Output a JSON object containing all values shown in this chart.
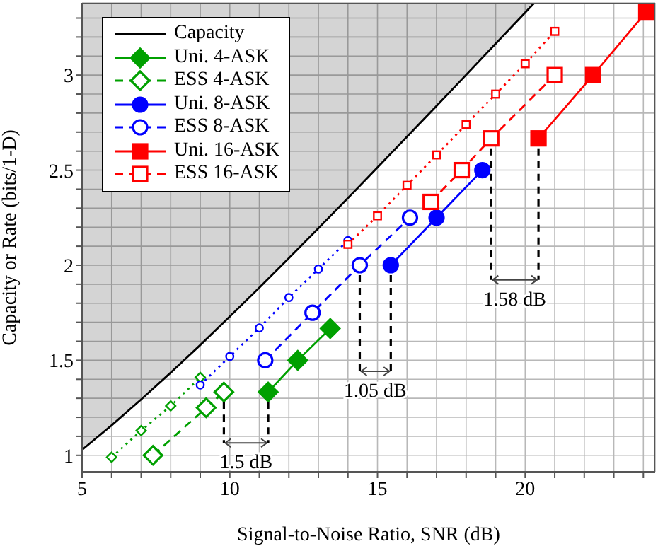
{
  "chart_data": {
    "type": "line",
    "xlabel": "Signal-to-Noise Ratio, SNR (dB)",
    "ylabel": "Capacity or Rate (bits/1-D)",
    "xlim": [
      5,
      24.4
    ],
    "ylim": [
      0.91,
      3.38
    ],
    "xticks": [
      5,
      {
        "value": 6,
        "label": null
      },
      {
        "value": 7,
        "label": null
      },
      {
        "value": 8,
        "label": null
      },
      {
        "value": 9,
        "label": null
      },
      10,
      {
        "value": 11,
        "label": null
      },
      {
        "value": 12,
        "label": null
      },
      {
        "value": 13,
        "label": null
      },
      {
        "value": 14,
        "label": null
      },
      15,
      {
        "value": 16,
        "label": null
      },
      {
        "value": 17,
        "label": null
      },
      {
        "value": 18,
        "label": null
      },
      {
        "value": 19,
        "label": null
      },
      20,
      {
        "value": 21,
        "label": null
      },
      {
        "value": 22,
        "label": null
      },
      {
        "value": 23,
        "label": null
      },
      {
        "value": 24,
        "label": null
      }
    ],
    "yticks": [
      1,
      {
        "value": 1.1,
        "label": null
      },
      {
        "value": 1.2,
        "label": null
      },
      {
        "value": 1.3,
        "label": null
      },
      {
        "value": 1.4,
        "label": null
      },
      1.5,
      {
        "value": 1.6,
        "label": null
      },
      {
        "value": 1.7,
        "label": null
      },
      {
        "value": 1.8,
        "label": null
      },
      {
        "value": 1.9,
        "label": null
      },
      2,
      {
        "value": 2.1,
        "label": null
      },
      {
        "value": 2.2,
        "label": null
      },
      {
        "value": 2.3,
        "label": null
      },
      {
        "value": 2.4,
        "label": null
      },
      2.5,
      {
        "value": 2.6,
        "label": null
      },
      {
        "value": 2.7,
        "label": null
      },
      {
        "value": 2.8,
        "label": null
      },
      {
        "value": 2.9,
        "label": null
      },
      3,
      {
        "value": 3.1,
        "label": null
      },
      {
        "value": 3.2,
        "label": null
      },
      {
        "value": 3.3,
        "label": null
      }
    ],
    "grid": true,
    "legend": "top left",
    "series": [
      {
        "name": "Capacity",
        "type": "line",
        "color": "#000000",
        "marker": "none",
        "line_style": "solid",
        "x": [
          5,
          6,
          7,
          8,
          9,
          10,
          11,
          12,
          13,
          14,
          15,
          16,
          17,
          18,
          19,
          20,
          20.3
        ],
        "values": [
          1.029,
          1.158,
          1.294,
          1.435,
          1.58,
          1.73,
          1.882,
          2.037,
          2.194,
          2.353,
          2.514,
          2.676,
          2.838,
          3.001,
          3.165,
          3.329,
          3.378
        ]
      },
      {
        "name": "Uni. 4-ASK",
        "color": "#00a000",
        "marker": "diamond",
        "line_style": "solid",
        "x": [
          11.3,
          12.3,
          13.4
        ],
        "values": [
          1.333,
          1.5,
          1.667
        ]
      },
      {
        "name": "ESS 4-ASK",
        "color": "#00a000",
        "marker": "diamond",
        "line_style": "dashed",
        "x": [
          7.4,
          9.2,
          9.8
        ],
        "values": [
          1.0,
          1.25,
          1.333
        ]
      },
      {
        "name": "Uni. 8-ASK",
        "color": "#0000ff",
        "marker": "circle",
        "line_style": "solid",
        "x": [
          15.45,
          17.0,
          18.55
        ],
        "values": [
          2.0,
          2.25,
          2.5
        ]
      },
      {
        "name": "ESS 8-ASK",
        "color": "#0000ff",
        "marker": "circle",
        "line_style": "dashed",
        "x": [
          11.2,
          12.8,
          14.4,
          16.1
        ],
        "values": [
          1.5,
          1.75,
          2.0,
          2.25
        ]
      },
      {
        "name": "Uni. 16-ASK",
        "color": "#ff0000",
        "marker": "square",
        "line_style": "solid",
        "x": [
          20.45,
          22.3,
          24.1
        ],
        "values": [
          2.667,
          3.0,
          3.333
        ]
      },
      {
        "name": "ESS 16-ASK",
        "color": "#ff0000",
        "marker": "square",
        "line_style": "dashed",
        "x": [
          16.8,
          17.85,
          18.85,
          21.0
        ],
        "values": [
          2.333,
          2.5,
          2.667,
          3.0
        ]
      },
      {
        "color": "#00a000",
        "marker": "diamond",
        "line_style": "dotted",
        "x": [
          6,
          7,
          8,
          9
        ],
        "values": [
          0.99,
          1.13,
          1.26,
          1.41
        ]
      },
      {
        "color": "#0000ff",
        "marker": "circle",
        "line_style": "dotted",
        "x": [
          9,
          10,
          11,
          12,
          13,
          14
        ],
        "values": [
          1.37,
          1.52,
          1.67,
          1.83,
          1.98,
          2.13
        ]
      },
      {
        "color": "#ff0000",
        "marker": "square",
        "line_style": "dotted",
        "x": [
          14,
          15,
          16,
          17,
          18,
          19,
          20,
          21
        ],
        "values": [
          2.11,
          2.26,
          2.42,
          2.58,
          2.74,
          2.9,
          3.06,
          3.23
        ]
      }
    ],
    "annotations": [
      {
        "text": "1.5 dB",
        "x": 9.8,
        "y": 1.333
      },
      {
        "text": "1.05 dB",
        "x": 14.4,
        "y": 2.0
      },
      {
        "text": "1.58 dB",
        "x": 18.85,
        "y": 2.667
      }
    ]
  }
}
